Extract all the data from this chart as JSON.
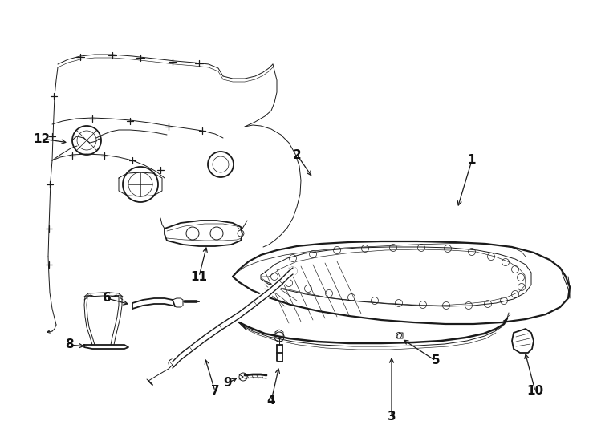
{
  "bg_color": "#ffffff",
  "line_color": "#1a1a1a",
  "label_color": "#111111",
  "lw_main": 1.3,
  "lw_thin": 0.7,
  "lw_hair": 0.45,
  "label_fontsize": 11,
  "figsize": [
    7.34,
    5.4
  ],
  "dpi": 100
}
